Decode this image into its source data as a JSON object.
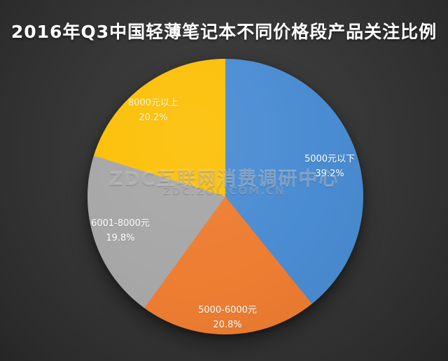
{
  "page_title": "2016年Q3中国轻薄笔记本不同价格段产品关注比例",
  "watermark": {
    "line1": "ZDC互联网消费调研中心",
    "line2": "ZDC.ZOL.COM.CN"
  },
  "chart_data": {
    "type": "pie",
    "title": "2016年Q3中国轻薄笔记本不同价格段产品关注比例",
    "direction": "clockwise",
    "start_angle_deg": 0,
    "legend": "none",
    "label_position": "inside",
    "background_color": "#343434",
    "title_color": "#ffffff",
    "label_color": "#ffffff",
    "categories": [
      "5000元以下",
      "5000-6000元",
      "6001-8000元",
      "8000元以上"
    ],
    "values": [
      39.2,
      20.8,
      19.8,
      20.2
    ],
    "slices": [
      {
        "label": "5000元以下",
        "value": 39.2,
        "percent_text": "39.2%",
        "color": "#4A8CD2"
      },
      {
        "label": "5000-6000元",
        "value": 20.8,
        "percent_text": "20.8%",
        "color": "#ED7D31"
      },
      {
        "label": "6001-8000元",
        "value": 19.8,
        "percent_text": "19.8%",
        "color": "#A7A7A7"
      },
      {
        "label": "8000元以上",
        "value": 20.2,
        "percent_text": "20.2%",
        "color": "#FCC008"
      }
    ]
  }
}
